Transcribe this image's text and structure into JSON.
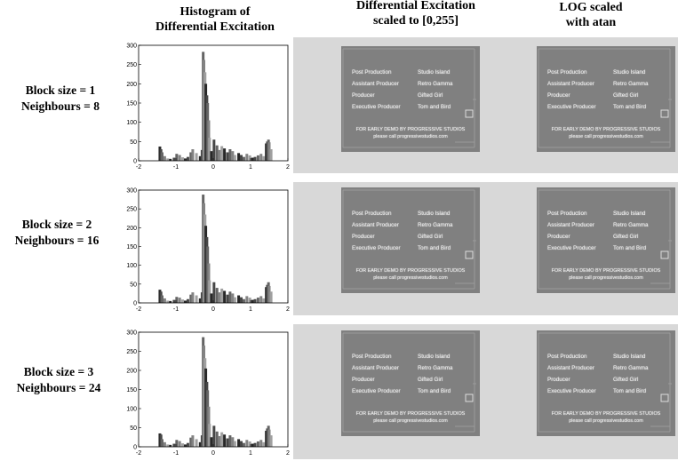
{
  "headers": {
    "col1": [
      "Histogram of",
      "Differential Excitation"
    ],
    "col2": [
      "Differential Excitation",
      "scaled to [0,255]"
    ],
    "col3": [
      "LOG scaled",
      "with atan"
    ]
  },
  "rows": [
    {
      "label": [
        "Block size = 1",
        "Neighbours = 8"
      ]
    },
    {
      "label": [
        "Block size = 2",
        "Neighbours = 16"
      ]
    },
    {
      "label": [
        "Block size = 3",
        "Neighbours = 24"
      ]
    }
  ],
  "image_text": {
    "credits_left": [
      "Post Production",
      "Assistant Producer",
      "Producer",
      "Executive Producer"
    ],
    "credits_right": [
      "Studio Island",
      "Retro Gamma",
      "Gifted Girl",
      "Tom and Bird"
    ],
    "footer": [
      "FOR EARLY DEMO BY PROGRESSIVE STUDIOS",
      "please call progressivestudios.com"
    ]
  },
  "chart_data": {
    "type": "bar",
    "xlim": [
      -2,
      2
    ],
    "ylim": [
      0,
      300
    ],
    "xticks": [
      "-2",
      "-1",
      "0",
      "1",
      "2"
    ],
    "yticks": [
      "0",
      "50",
      "100",
      "150",
      "200",
      "250",
      "300"
    ],
    "grid": false,
    "panels": [
      {
        "x": [
          -1.43,
          -1.4,
          -1.37,
          -1.3,
          -1.22,
          -1.15,
          -1.05,
          -0.98,
          -0.9,
          -0.82,
          -0.75,
          -0.68,
          -0.6,
          -0.55,
          -0.45,
          -0.35,
          -0.3,
          -0.27,
          -0.25,
          -0.22,
          -0.2,
          -0.17,
          -0.15,
          -0.12,
          -0.1,
          -0.05,
          0.02,
          0.1,
          0.17,
          0.23,
          0.3,
          0.38,
          0.45,
          0.52,
          0.58,
          0.68,
          0.75,
          0.82,
          0.9,
          0.98,
          1.05,
          1.12,
          1.2,
          1.28,
          1.35,
          1.42,
          1.45,
          1.48,
          1.5,
          1.55
        ],
        "y": [
          37,
          30,
          22,
          12,
          6,
          5,
          8,
          18,
          15,
          9,
          6,
          10,
          22,
          30,
          20,
          12,
          28,
          283,
          262,
          230,
          200,
          170,
          150,
          105,
          60,
          25,
          55,
          40,
          28,
          38,
          32,
          22,
          30,
          25,
          15,
          20,
          15,
          10,
          18,
          14,
          8,
          10,
          14,
          18,
          12,
          45,
          50,
          55,
          48,
          30
        ]
      },
      {
        "x": [
          -1.43,
          -1.4,
          -1.37,
          -1.3,
          -1.22,
          -1.15,
          -1.05,
          -0.98,
          -0.9,
          -0.82,
          -0.75,
          -0.68,
          -0.6,
          -0.55,
          -0.45,
          -0.35,
          -0.3,
          -0.27,
          -0.25,
          -0.22,
          -0.2,
          -0.17,
          -0.15,
          -0.12,
          -0.1,
          -0.05,
          0.02,
          0.1,
          0.17,
          0.23,
          0.3,
          0.38,
          0.45,
          0.52,
          0.58,
          0.68,
          0.75,
          0.82,
          0.9,
          0.98,
          1.05,
          1.12,
          1.2,
          1.28,
          1.35,
          1.42,
          1.45,
          1.48,
          1.5,
          1.55
        ],
        "y": [
          35,
          30,
          20,
          12,
          6,
          5,
          8,
          16,
          14,
          9,
          6,
          10,
          22,
          28,
          20,
          12,
          28,
          288,
          265,
          235,
          205,
          175,
          150,
          105,
          60,
          25,
          55,
          40,
          28,
          38,
          32,
          22,
          30,
          25,
          15,
          20,
          15,
          10,
          18,
          14,
          8,
          10,
          14,
          18,
          12,
          42,
          48,
          55,
          45,
          30
        ]
      },
      {
        "x": [
          -1.43,
          -1.4,
          -1.37,
          -1.3,
          -1.22,
          -1.15,
          -1.05,
          -0.98,
          -0.9,
          -0.82,
          -0.75,
          -0.68,
          -0.6,
          -0.55,
          -0.45,
          -0.35,
          -0.3,
          -0.27,
          -0.25,
          -0.22,
          -0.2,
          -0.17,
          -0.15,
          -0.12,
          -0.1,
          -0.05,
          0.02,
          0.1,
          0.17,
          0.23,
          0.3,
          0.38,
          0.45,
          0.52,
          0.58,
          0.68,
          0.75,
          0.82,
          0.9,
          0.98,
          1.05,
          1.12,
          1.2,
          1.28,
          1.35,
          1.42,
          1.45,
          1.48,
          1.5,
          1.55
        ],
        "y": [
          35,
          32,
          20,
          12,
          6,
          5,
          8,
          18,
          15,
          9,
          6,
          10,
          24,
          30,
          20,
          12,
          30,
          287,
          265,
          232,
          205,
          170,
          148,
          105,
          60,
          25,
          55,
          40,
          28,
          38,
          32,
          22,
          30,
          25,
          15,
          20,
          15,
          10,
          18,
          14,
          8,
          10,
          14,
          18,
          12,
          42,
          48,
          55,
          45,
          30
        ]
      }
    ]
  }
}
